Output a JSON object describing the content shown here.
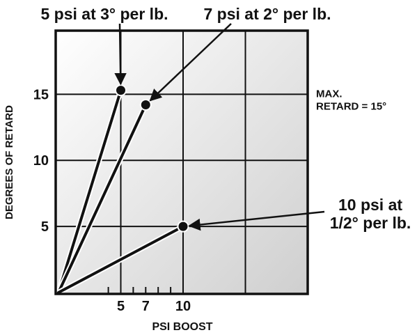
{
  "chart_data": {
    "type": "line",
    "xlabel": "PSI BOOST",
    "ylabel": "DEGREES OF RETARD",
    "xlim": [
      0,
      20
    ],
    "ylim": [
      0,
      20
    ],
    "x_tick_labels": [
      {
        "value": 5,
        "label": "5"
      },
      {
        "value": 7,
        "label": "7"
      },
      {
        "value": 10,
        "label": "10"
      }
    ],
    "x_minor_ticks": [
      4,
      5,
      6,
      7,
      8,
      9
    ],
    "x_grid": [
      5,
      10,
      15
    ],
    "y_tick_labels": [
      {
        "value": 5,
        "label": "5"
      },
      {
        "value": 10,
        "label": "10"
      },
      {
        "value": 15,
        "label": "15"
      }
    ],
    "y_grid": [
      5,
      10,
      15
    ],
    "grid": true,
    "series": [
      {
        "points": [
          [
            0,
            0
          ],
          [
            5,
            15.3
          ]
        ]
      },
      {
        "points": [
          [
            0,
            0
          ],
          [
            7,
            14.2
          ]
        ]
      },
      {
        "points": [
          [
            0,
            0
          ],
          [
            10,
            5
          ]
        ]
      }
    ],
    "reference_line": {
      "y": 15,
      "label_lines": [
        "MAX.",
        "RETARD = 15°"
      ]
    },
    "annotations": [
      {
        "lines": [
          "5 psi at 3° per lb."
        ],
        "series": 0
      },
      {
        "lines": [
          "7 psi at 2° per lb."
        ],
        "series": 1
      },
      {
        "lines": [
          "10 psi at",
          "1/2° per lb."
        ],
        "series": 2
      }
    ],
    "colors": {
      "line": "#111111",
      "line_halo": "#ffffff",
      "grid": "#111111",
      "bg_light": "#ffffff",
      "bg_dark": "#cfcfcf"
    }
  }
}
